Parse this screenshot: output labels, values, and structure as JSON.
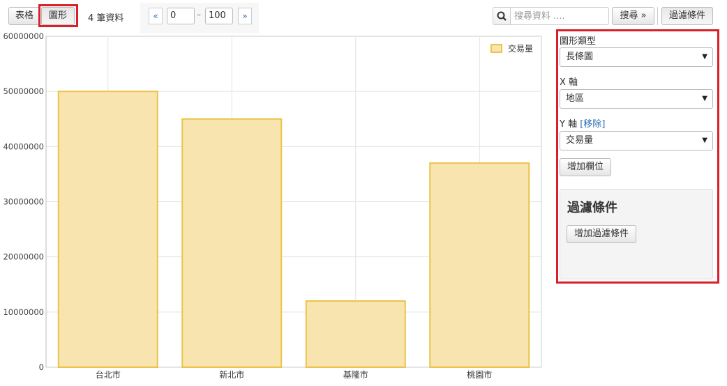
{
  "toolbar": {
    "table_label": "表格",
    "chart_label": "圖形",
    "record_count": "4 筆資料",
    "pager": {
      "prev": "«",
      "next": "»",
      "from": "0",
      "sep": "–",
      "to": "100"
    },
    "search_placeholder": "搜尋資料 ....",
    "search_button": "搜尋 »",
    "filter_button": "過濾條件"
  },
  "sidebar": {
    "chart_type_label": "圖形類型",
    "chart_type_value": "長條圖",
    "x_axis_label": "X 軸",
    "x_axis_value": "地區",
    "y_axis_label": "Y 軸",
    "y_axis_remove_open": "[",
    "y_axis_remove": "移除",
    "y_axis_remove_close": "]",
    "y_axis_value": "交易量",
    "add_field_button": "增加欄位",
    "filter_title": "過濾條件",
    "add_filter_button": "增加過濾條件"
  },
  "colors": {
    "bar_fill": "#f7e4ae",
    "bar_stroke": "#ecc34a",
    "highlight": "#d9202a",
    "link": "#2a6fb0"
  },
  "chart_data": {
    "type": "bar",
    "categories": [
      "台北市",
      "新北市",
      "基隆市",
      "桃園市"
    ],
    "series": [
      {
        "name": "交易量",
        "values": [
          50000000,
          45000000,
          12000000,
          37000000
        ]
      }
    ],
    "ylim": [
      0,
      60000000
    ],
    "yticks": [
      "0",
      "10000000",
      "20000000",
      "30000000",
      "40000000",
      "50000000",
      "60000000"
    ],
    "legend": "top-right",
    "grid": true
  }
}
